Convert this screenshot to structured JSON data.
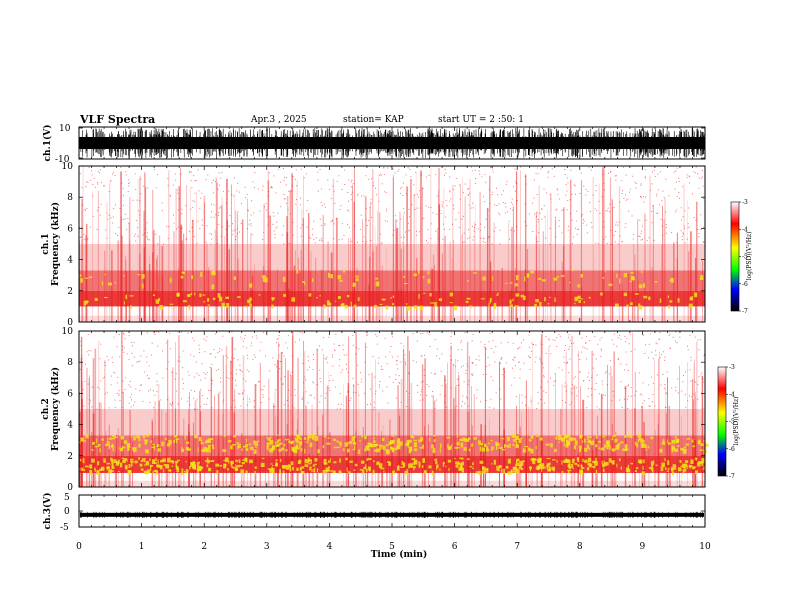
{
  "header": {
    "title": "VLF Spectra",
    "date": "Apr.3 , 2025",
    "station": "station= KAP",
    "start": "start UT = 2 :50: 1"
  },
  "colors": {
    "spectrogram_bg": "#ffffff",
    "noise_light": "#f06a6a",
    "noise_dense": "#e81818",
    "hot": "#f4e21a",
    "line": "#000000"
  },
  "colorbar": {
    "ticks": [
      "-3",
      "-4",
      "-5",
      "-6",
      "-7"
    ],
    "values": [
      -3,
      -4,
      -5,
      -6,
      -7
    ],
    "label": "log(PSD)(V²/Hz)",
    "stops": [
      "#ffffff",
      "#ff0000",
      "#ffff00",
      "#00ff00",
      "#0000ff",
      "#000000"
    ]
  },
  "chart_data": [
    {
      "type": "line",
      "name": "ch1-waveform",
      "ylabel": "ch.1(V)",
      "ylim": [
        -10,
        10
      ],
      "yticks": [
        "10",
        "-10"
      ],
      "xlim": [
        0,
        10
      ]
    },
    {
      "type": "heatmap",
      "name": "ch1-spectrogram",
      "ylabel": "ch.1",
      "ylabel2": "Frequency (kHz)",
      "ylim": [
        0,
        10
      ],
      "yticks": [
        "0",
        "2",
        "4",
        "6",
        "8",
        "10"
      ],
      "xlim": [
        0,
        10
      ],
      "bands_khz": [
        [
          0.0,
          0.4
        ],
        [
          1.0,
          2.0
        ],
        [
          2.0,
          3.3
        ],
        [
          3.3,
          5.0
        ]
      ]
    },
    {
      "type": "heatmap",
      "name": "ch2-spectrogram",
      "ylabel": "ch.2",
      "ylabel2": "Frequency (kHz)",
      "ylim": [
        0,
        10
      ],
      "yticks": [
        "0",
        "2",
        "4",
        "6",
        "8",
        "10"
      ],
      "xlim": [
        0,
        10
      ],
      "bands_khz": [
        [
          0.0,
          0.4
        ],
        [
          0.9,
          2.0
        ],
        [
          2.0,
          3.3
        ],
        [
          3.3,
          5.0
        ]
      ]
    },
    {
      "type": "line",
      "name": "ch3-waveform",
      "ylabel": "ch.3(V)",
      "ylim": [
        -5,
        5
      ],
      "yticks": [
        "5",
        "0",
        "-5"
      ],
      "xlim": [
        0,
        10
      ]
    }
  ],
  "xaxis": {
    "label": "Time (min)",
    "ticks": [
      "0",
      "1",
      "2",
      "3",
      "4",
      "5",
      "6",
      "7",
      "8",
      "9",
      "10"
    ],
    "values": [
      0,
      1,
      2,
      3,
      4,
      5,
      6,
      7,
      8,
      9,
      10
    ]
  }
}
